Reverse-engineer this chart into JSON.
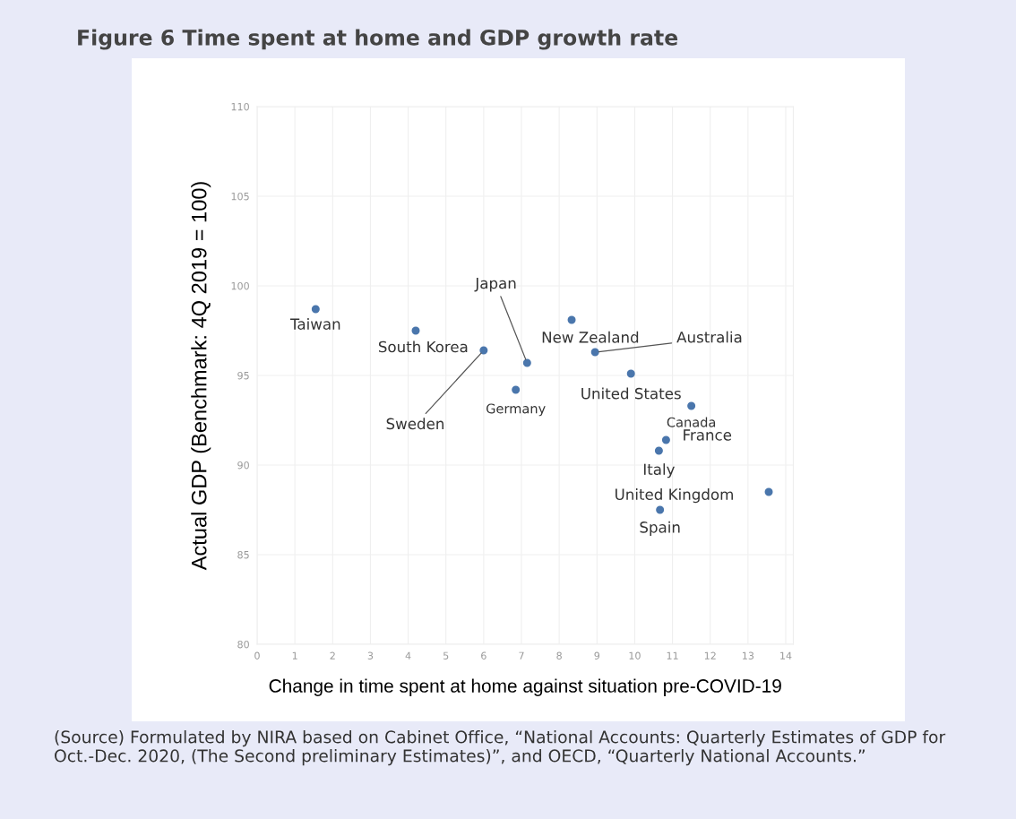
{
  "chart_data": {
    "type": "scatter",
    "title": "Figure 6 Time spent at home and GDP growth rate",
    "xlabel": "Change in time spent at home against situation pre-COVID-19",
    "ylabel": "Actual GDP (Benchmark: 4Q 2019 = 100)",
    "series": [
      {
        "color": "#4a76ac",
        "x": [
          1.55,
          4.2,
          6.0,
          7.15,
          6.85,
          8.33,
          8.95,
          9.9,
          11.5,
          10.83,
          10.64,
          13.55,
          10.67
        ],
        "values": [
          98.7,
          97.5,
          96.4,
          95.7,
          94.2,
          98.1,
          96.3,
          95.1,
          93.3,
          91.4,
          90.8,
          88.5,
          87.5
        ]
      }
    ],
    "marker": "circle",
    "xlim": [
      0,
      14.2
    ],
    "xticks": [
      0,
      1,
      2,
      3,
      4,
      5,
      6,
      7,
      8,
      9,
      10,
      11,
      12,
      13,
      14
    ],
    "ylim": [
      80,
      110
    ],
    "yticks": [
      80,
      85,
      90,
      95,
      100,
      105,
      110
    ],
    "grid": true,
    "annotations": [
      {
        "text": "Taiwan",
        "x": 1.55,
        "y": 98.7
      },
      {
        "text": "South Korea",
        "x": 4.2,
        "y": 97.5
      },
      {
        "text": "Sweden",
        "x": 6.0,
        "y": 96.4
      },
      {
        "text": "Japan",
        "x": 7.15,
        "y": 95.7
      },
      {
        "text": "Germany",
        "x": 6.85,
        "y": 94.2
      },
      {
        "text": "New Zealand",
        "x": 8.33,
        "y": 98.1
      },
      {
        "text": "Australia",
        "x": 8.95,
        "y": 96.3
      },
      {
        "text": "United States",
        "x": 9.9,
        "y": 95.1
      },
      {
        "text": "Canada",
        "x": 11.5,
        "y": 93.3
      },
      {
        "text": "France",
        "x": 10.83,
        "y": 91.4
      },
      {
        "text": "Italy",
        "x": 10.64,
        "y": 90.8
      },
      {
        "text": "United Kingdom",
        "x": 13.55,
        "y": 88.5
      },
      {
        "text": "Spain",
        "x": 10.67,
        "y": 87.5
      },
      "(Source) Formulated by NIRA based on Cabinet Office, “National Accounts: Quarterly Estimates of GDP for Oct.-Dec. 2020, (The Second preliminary Estimates)”, and OECD, “Quarterly National Accounts.”"
    ]
  }
}
